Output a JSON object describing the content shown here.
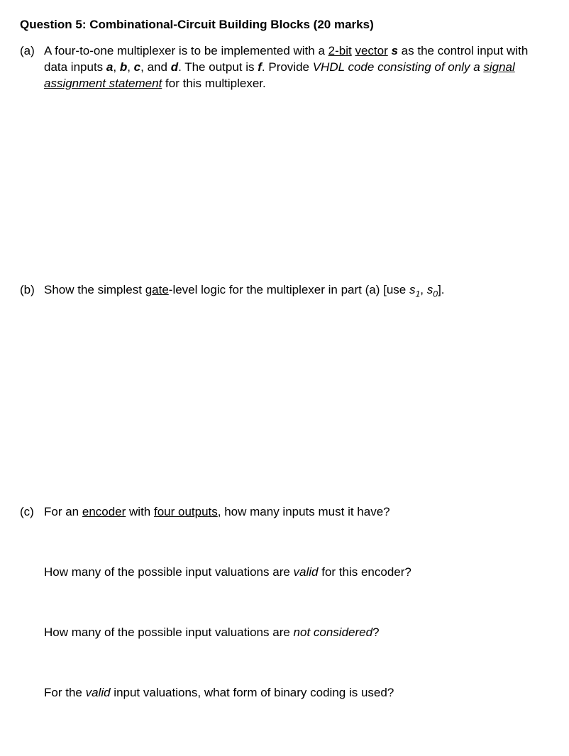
{
  "title": "Question 5: Combinational-Circuit Building Blocks (20 marks)",
  "parts": {
    "a": {
      "label": "(a)",
      "t1": "A four-to-one multiplexer is to be implemented with a ",
      "u1": "2-bit",
      "t2": " ",
      "u2": "vector",
      "t3": " ",
      "s": "s",
      "t4": " as the control input with data inputs ",
      "a_": "a",
      "comma1": ", ",
      "b_": "b",
      "comma2": ", ",
      "c_": "c",
      "comma3": ", and ",
      "d_": "d",
      "t5": ". The output is ",
      "f_": "f",
      "t6": ". Provide ",
      "vhdl": "VHDL code consisting of only a ",
      "sas": "signal assignment statement",
      "t7": " for this multiplexer."
    },
    "b": {
      "label": "(b)",
      "t1": "Show the simplest ",
      "gate": "gate",
      "t2": "-level logic for the multiplexer in part (a) [use ",
      "s1a": "s",
      "s1b": "1",
      "comma": ", ",
      "s0a": "s",
      "s0b": "0",
      "t3": "]."
    },
    "c": {
      "label": "(c)",
      "t1": "For an ",
      "enc": "encoder",
      "t2": " with ",
      "fo": "four outputs",
      "t3": ", how many inputs must it have?",
      "q2a": "How many of the possible input valuations are ",
      "q2b": "valid",
      "q2c": " for this encoder?",
      "q3a": "How many of the possible input valuations are ",
      "q3b": "not considered",
      "q3c": "?",
      "q4a": "For the ",
      "q4b": "valid",
      "q4c": " input valuations, what form of binary coding is used?"
    }
  }
}
